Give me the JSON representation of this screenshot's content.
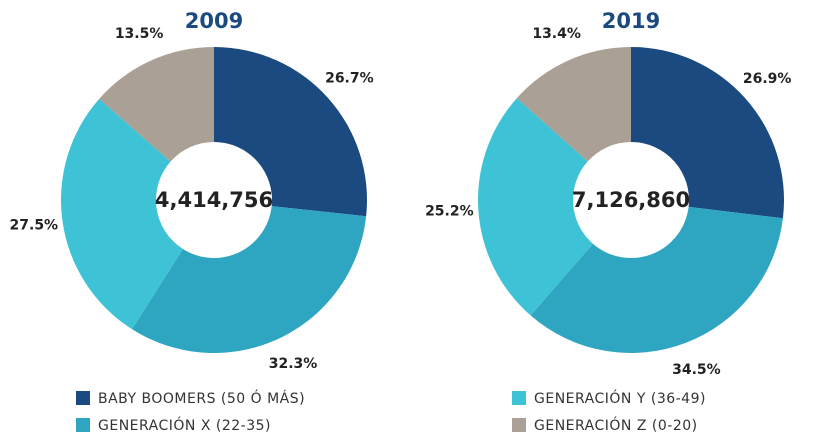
{
  "chart_data": [
    {
      "type": "donut",
      "title": "2009",
      "center_label": "4,414,756",
      "categories": [
        "BABY BOOMERS (50 Ó MÁS)",
        "GENERACIÓN X (22-35)",
        "GENERACIÓN Y (36-49)",
        "GENERACIÓN Z (0-20)"
      ],
      "values": [
        26.7,
        32.3,
        27.5,
        13.5
      ],
      "value_labels": [
        "26.7%",
        "32.3%",
        "27.5%",
        "13.5%"
      ],
      "colors": [
        "#1b4a80",
        "#2fa6c1",
        "#3ec3d6",
        "#aaa096"
      ]
    },
    {
      "type": "donut",
      "title": "2019",
      "center_label": "7,126,860",
      "categories": [
        "BABY BOOMERS (50 Ó MÁS)",
        "GENERACIÓN X (22-35)",
        "GENERACIÓN Y (36-49)",
        "GENERACIÓN Z (0-20)"
      ],
      "values": [
        26.9,
        34.5,
        25.2,
        13.4
      ],
      "value_labels": [
        "26.9%",
        "34.5%",
        "25.2%",
        "13.4%"
      ],
      "colors": [
        "#1b4a80",
        "#2fa6c1",
        "#3ec3d6",
        "#aaa096"
      ]
    }
  ]
}
